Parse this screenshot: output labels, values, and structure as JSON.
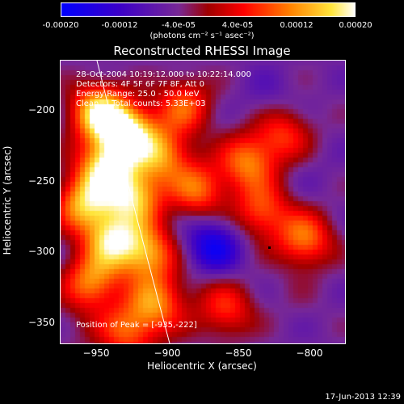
{
  "chart_data": {
    "type": "heatmap",
    "title": "Reconstructed RHESSI Image",
    "xlabel": "Heliocentric X (arcsec)",
    "ylabel": "Heliocentric Y (arcsec)",
    "xlim": [
      -975,
      -775
    ],
    "ylim": [
      -365,
      -165
    ],
    "x_ticks": [
      "-950",
      "-900",
      "-850",
      "-800"
    ],
    "y_ticks": [
      "-200",
      "-250",
      "-300",
      "-350"
    ],
    "colorbar": {
      "range": [
        -0.0002,
        0.0002
      ],
      "ticks": [
        "-0.00020",
        "-0.00012",
        "-4.0e-05",
        "4.0e-05",
        "0.00012",
        "0.00020"
      ],
      "units": "(photons cm⁻² s⁻¹ asec⁻²)"
    },
    "annotations": [
      "28-Oct-2004 10:19:12.000 to 10:22:14.000",
      "Detectors: 4F 5F 6F 7F 8F, Att 0",
      "Energy Range: 25.0 - 50.0 keV",
      "Clean     Total counts: 5.33E+03"
    ],
    "peak_label": "Position of Peak = [-935,-222]",
    "footer": "17-Jun-2013 12:39",
    "blobs": [
      {
        "x": -950,
        "y": -200,
        "v": 0.00017
      },
      {
        "x": -930,
        "y": -215,
        "v": 0.00019
      },
      {
        "x": -945,
        "y": -240,
        "v": 0.00016
      },
      {
        "x": -925,
        "y": -260,
        "v": 0.00014
      },
      {
        "x": -960,
        "y": -265,
        "v": 0.00013
      },
      {
        "x": -940,
        "y": -290,
        "v": 0.00015
      },
      {
        "x": -915,
        "y": -300,
        "v": 0.00012
      },
      {
        "x": -955,
        "y": -320,
        "v": 0.00011
      },
      {
        "x": -910,
        "y": -335,
        "v": 0.0001
      },
      {
        "x": -930,
        "y": -355,
        "v": 8e-05
      },
      {
        "x": -905,
        "y": -230,
        "v": 0.0001
      },
      {
        "x": -890,
        "y": -195,
        "v": 8e-05
      },
      {
        "x": -880,
        "y": -255,
        "v": 9e-05
      },
      {
        "x": -845,
        "y": -235,
        "v": 0.0001
      },
      {
        "x": -835,
        "y": -270,
        "v": 8e-05
      },
      {
        "x": -820,
        "y": -215,
        "v": 6e-05
      },
      {
        "x": -805,
        "y": -290,
        "v": 0.0001
      },
      {
        "x": -860,
        "y": -340,
        "v": 6e-05
      },
      {
        "x": -880,
        "y": -320,
        "v": -3e-05
      },
      {
        "x": -870,
        "y": -295,
        "v": -0.00018
      },
      {
        "x": -830,
        "y": -190,
        "v": -8e-05
      },
      {
        "x": -800,
        "y": -245,
        "v": -6e-05
      },
      {
        "x": -840,
        "y": -355,
        "v": -5e-05
      },
      {
        "x": -895,
        "y": -355,
        "v": -4e-05
      },
      {
        "x": -810,
        "y": -330,
        "v": -4e-05
      },
      {
        "x": -965,
        "y": -355,
        "v": -3e-05
      }
    ]
  }
}
